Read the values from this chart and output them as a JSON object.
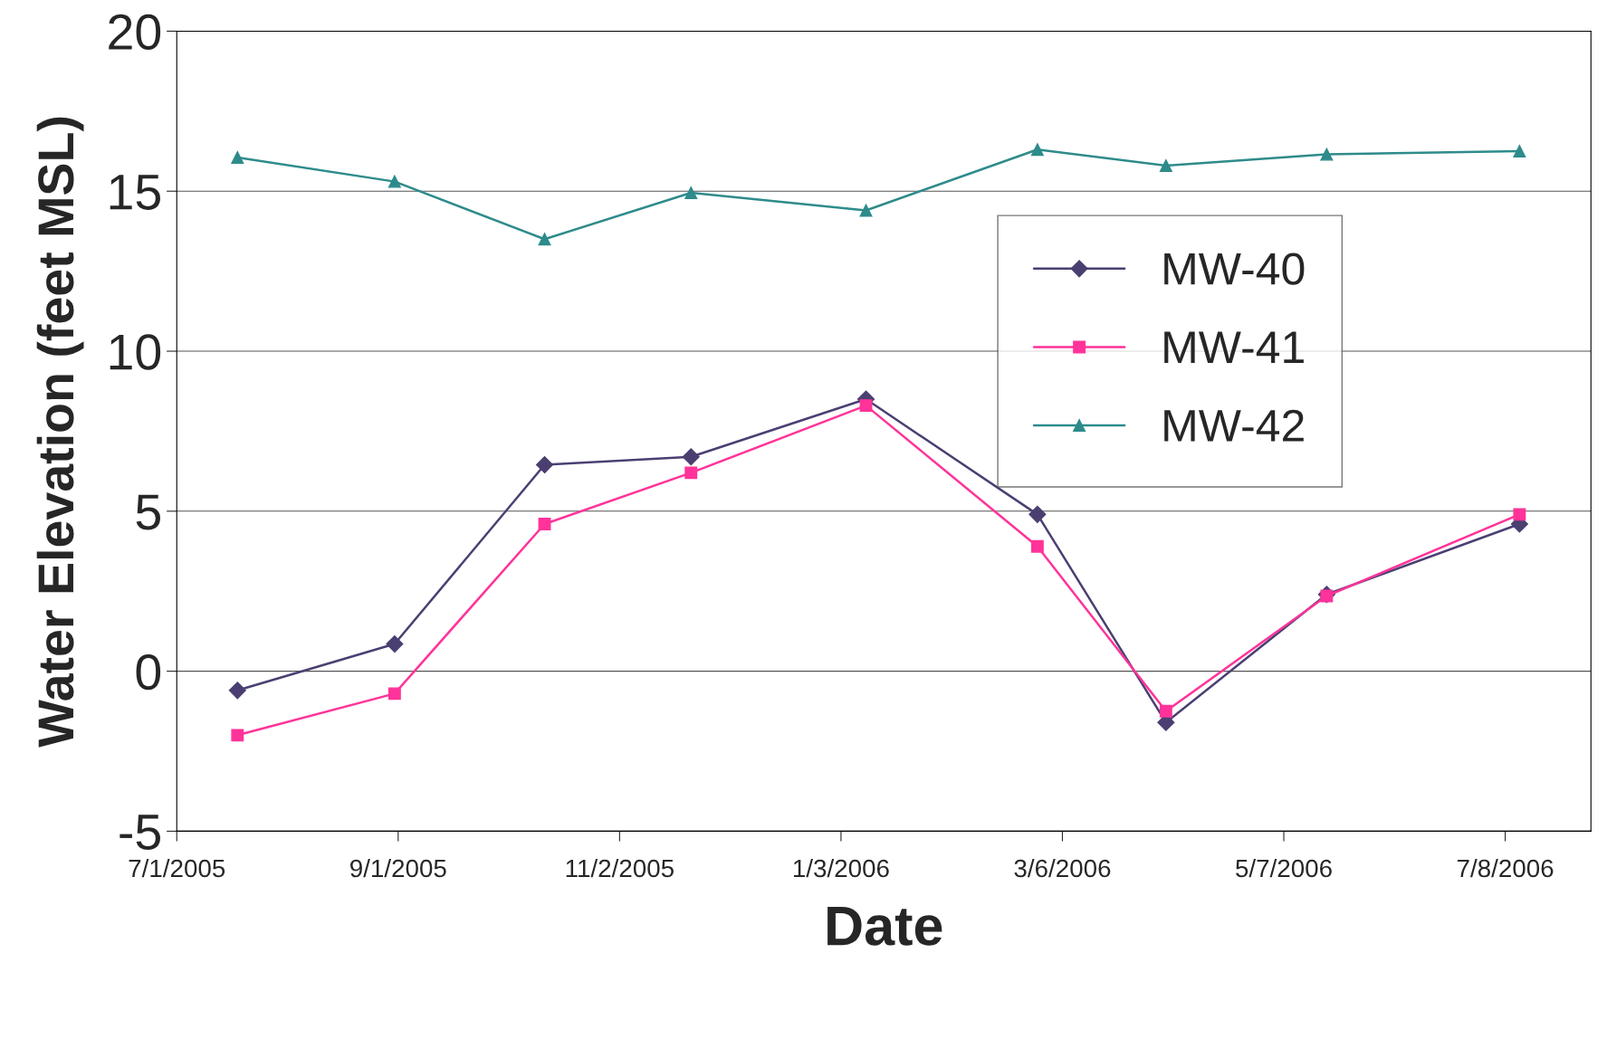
{
  "chart_data": {
    "type": "line",
    "xlabel": "Date",
    "ylabel": "Water Elevation (feet MSL)",
    "x": [
      "2005-07-18",
      "2005-08-31",
      "2005-10-12",
      "2005-11-22",
      "2006-01-10",
      "2006-02-27",
      "2006-04-04",
      "2006-05-19",
      "2006-07-12"
    ],
    "series": [
      {
        "name": "MW-40",
        "color": "#4b3f72",
        "marker": "diamond",
        "values": [
          -0.6,
          0.85,
          6.45,
          6.7,
          8.5,
          4.9,
          -1.6,
          2.4,
          4.6
        ]
      },
      {
        "name": "MW-41",
        "color": "#ff3399",
        "marker": "square",
        "values": [
          -2.0,
          -0.7,
          4.6,
          6.2,
          8.3,
          3.9,
          -1.25,
          2.35,
          4.9
        ]
      },
      {
        "name": "MW-42",
        "color": "#2e8b8b",
        "marker": "triangle",
        "values": [
          16.05,
          15.3,
          13.5,
          14.95,
          14.4,
          16.3,
          15.8,
          16.15,
          16.25
        ]
      }
    ],
    "xlim": [
      "2005-07-01",
      "2006-08-01"
    ],
    "xticks": [
      {
        "value": "2005-07-01",
        "label": "7/1/2005"
      },
      {
        "value": "2005-09-01",
        "label": "9/1/2005"
      },
      {
        "value": "2005-11-02",
        "label": "11/2/2005"
      },
      {
        "value": "2006-01-03",
        "label": "1/3/2006"
      },
      {
        "value": "2006-03-06",
        "label": "3/6/2006"
      },
      {
        "value": "2006-05-07",
        "label": "5/7/2006"
      },
      {
        "value": "2006-07-08",
        "label": "7/8/2006"
      }
    ],
    "ylim": [
      -5,
      20
    ],
    "yticks": [
      -5,
      0,
      5,
      10,
      15,
      20
    ],
    "grid": "y",
    "legend": "center right",
    "line_style": "solid"
  }
}
